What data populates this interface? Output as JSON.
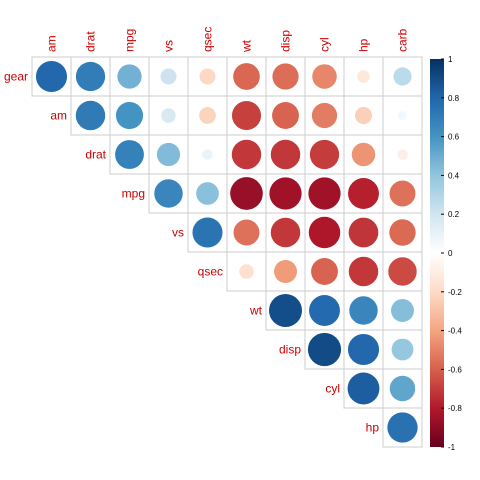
{
  "chart_data": {
    "type": "heatmap",
    "variables": [
      "gear",
      "am",
      "drat",
      "mpg",
      "vs",
      "qsec",
      "wt",
      "disp",
      "cyl",
      "hp",
      "carb"
    ],
    "column_labels": [
      "am",
      "drat",
      "mpg",
      "vs",
      "qsec",
      "wt",
      "disp",
      "cyl",
      "hp",
      "carb"
    ],
    "row_labels": [
      "gear",
      "am",
      "drat",
      "mpg",
      "vs",
      "qsec",
      "wt",
      "disp",
      "cyl",
      "hp"
    ],
    "shape": "circle",
    "layout": "upper-triangle",
    "matrix": [
      [
        1.0,
        0.79,
        0.7,
        0.48,
        0.21,
        -0.21,
        -0.58,
        -0.56,
        -0.49,
        -0.13,
        0.27
      ],
      [
        0.79,
        1.0,
        0.71,
        0.6,
        0.17,
        -0.23,
        -0.69,
        -0.59,
        -0.52,
        -0.24,
        0.06
      ],
      [
        0.7,
        0.71,
        1.0,
        0.68,
        0.44,
        0.09,
        -0.71,
        -0.71,
        -0.7,
        -0.45,
        -0.09
      ],
      [
        0.48,
        0.6,
        0.68,
        1.0,
        0.66,
        0.42,
        -0.87,
        -0.85,
        -0.85,
        -0.78,
        -0.55
      ],
      [
        0.21,
        0.17,
        0.44,
        0.66,
        1.0,
        0.74,
        -0.55,
        -0.71,
        -0.81,
        -0.72,
        -0.57
      ],
      [
        -0.21,
        -0.23,
        0.09,
        0.42,
        0.74,
        1.0,
        -0.17,
        -0.43,
        -0.59,
        -0.71,
        -0.66
      ],
      [
        -0.58,
        -0.69,
        -0.71,
        -0.87,
        -0.55,
        -0.17,
        1.0,
        0.89,
        0.78,
        0.66,
        0.43
      ],
      [
        -0.56,
        -0.59,
        -0.71,
        -0.85,
        -0.71,
        -0.43,
        0.89,
        1.0,
        0.9,
        0.79,
        0.39
      ],
      [
        -0.49,
        -0.52,
        -0.7,
        -0.85,
        -0.81,
        -0.59,
        0.78,
        0.9,
        1.0,
        0.83,
        0.53
      ],
      [
        -0.13,
        -0.24,
        -0.45,
        -0.78,
        -0.72,
        -0.71,
        0.66,
        0.79,
        0.83,
        1.0,
        0.75
      ],
      [
        0.27,
        0.06,
        -0.09,
        -0.55,
        -0.57,
        -0.66,
        0.43,
        0.39,
        0.53,
        0.75,
        1.0
      ]
    ],
    "color_scale": {
      "range": [
        -1,
        1
      ],
      "ticks": [
        1,
        0.8,
        0.6,
        0.4,
        0.2,
        0,
        -0.2,
        -0.4,
        -0.6,
        -0.8,
        -1
      ],
      "tick_labels": [
        "1",
        "0.8",
        "0.6",
        "0.4",
        "0.2",
        "0",
        "-0.2",
        "-0.4",
        "-0.6",
        "-0.8",
        "-1"
      ],
      "stops": [
        "#67001F",
        "#B2182B",
        "#D6604D",
        "#F4A582",
        "#FDDBC7",
        "#FFFFFF",
        "#D1E5F0",
        "#92C5DE",
        "#4393C3",
        "#2166AC",
        "#053061"
      ]
    },
    "label_color": "#CC0000",
    "grid_color": "#CCCCCC",
    "legend_placement": "right"
  }
}
